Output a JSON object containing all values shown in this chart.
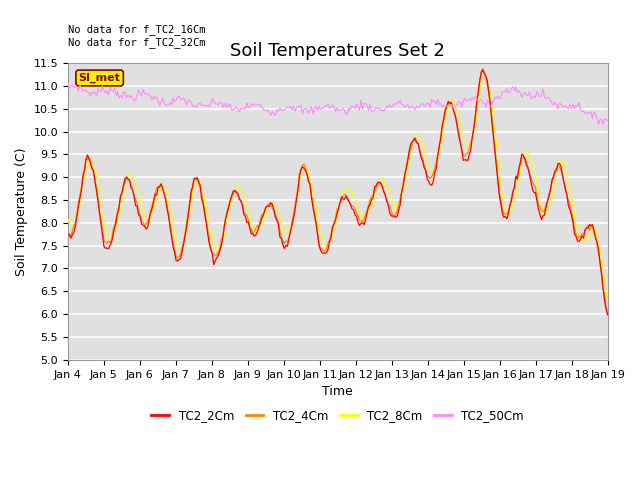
{
  "title": "Soil Temperatures Set 2",
  "xlabel": "Time",
  "ylabel": "Soil Temperature (C)",
  "ylim": [
    5.0,
    11.5
  ],
  "background_color": "#ffffff",
  "plot_bg_color": "#e0e0e0",
  "grid_color": "#ffffff",
  "annotation_text": "No data for f_TC2_16Cm\nNo data for f_TC2_32Cm",
  "legend_label": "SI_met",
  "series_colors": {
    "TC2_2Cm": "#ff0000",
    "TC2_4Cm": "#ff8800",
    "TC2_8Cm": "#ffff00",
    "TC2_50Cm": "#ff88ff"
  },
  "x_tick_labels": [
    "Jan 4",
    "Jan 5",
    "Jan 6",
    "Jan 7",
    "Jan 8",
    "Jan 9",
    "Jan 10",
    "Jan 11",
    "Jan 12",
    "Jan 13",
    "Jan 14",
    "Jan 15",
    "Jan 16",
    "Jan 17",
    "Jan 18",
    "Jan 19",
    "Jan 19"
  ],
  "title_fontsize": 13,
  "axis_fontsize": 9,
  "tick_fontsize": 8
}
